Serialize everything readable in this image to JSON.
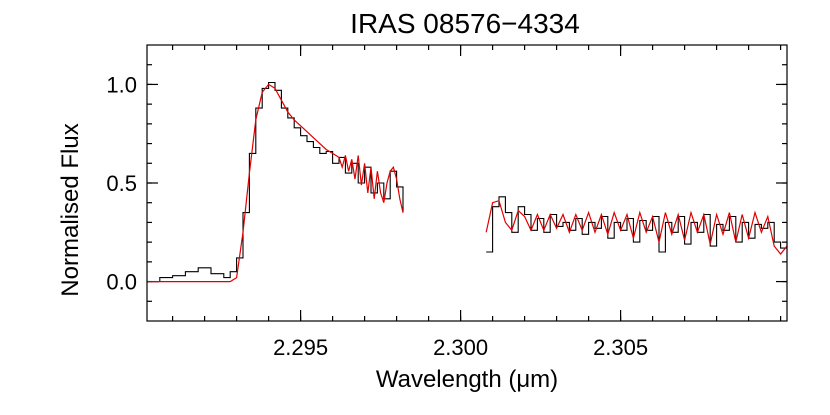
{
  "chart_data": {
    "type": "line",
    "title": "IRAS 08576−4334",
    "xlabel": "Wavelength (μm)",
    "ylabel": "Normalised Flux",
    "xlim": [
      2.2902,
      2.3102
    ],
    "ylim": [
      -0.2,
      1.2
    ],
    "x_ticks": [
      2.295,
      2.3,
      2.305
    ],
    "x_tick_labels": [
      "2.295",
      "2.300",
      "2.305"
    ],
    "x_minor_step": 0.001,
    "y_ticks": [
      0.0,
      0.5,
      1.0
    ],
    "y_tick_labels": [
      "0.0",
      "0.5",
      "1.0"
    ],
    "y_minor_step": 0.1,
    "grid": false,
    "colors": {
      "observed": "#000000",
      "model": "#e00000"
    },
    "series": [
      {
        "style": "histogram-step",
        "color": "#000000",
        "segments": [
          {
            "x": [
              2.2902,
              2.2906,
              2.291,
              2.2914,
              2.2918,
              2.2922,
              2.2926,
              2.2928,
              2.293,
              2.2932,
              2.2934,
              2.2936,
              2.2938,
              2.294,
              2.2942,
              2.2944,
              2.2946,
              2.2948,
              2.295,
              2.2952,
              2.2954,
              2.2956,
              2.2958,
              2.296,
              2.2962,
              2.2964,
              2.2966,
              2.2968,
              2.297,
              2.2972,
              2.2974,
              2.2976,
              2.2978,
              2.298,
              2.2982
            ],
            "y": [
              0.0,
              0.02,
              0.03,
              0.05,
              0.07,
              0.04,
              0.02,
              0.05,
              0.12,
              0.35,
              0.65,
              0.88,
              0.98,
              1.01,
              0.97,
              0.88,
              0.83,
              0.78,
              0.74,
              0.71,
              0.68,
              0.65,
              0.66,
              0.6,
              0.63,
              0.55,
              0.6,
              0.5,
              0.58,
              0.45,
              0.5,
              0.42,
              0.56,
              0.48,
              0.35
            ]
          },
          {
            "x": [
              2.3008,
              2.301,
              2.3012,
              2.3014,
              2.3016,
              2.3018,
              2.302,
              2.3022,
              2.3024,
              2.3026,
              2.3028,
              2.303,
              2.3032,
              2.3034,
              2.3036,
              2.3038,
              2.304,
              2.3042,
              2.3044,
              2.3046,
              2.3048,
              2.305,
              2.3052,
              2.3054,
              2.3056,
              2.3058,
              2.306,
              2.3062,
              2.3064,
              2.3066,
              2.3068,
              2.307,
              2.3072,
              2.3074,
              2.3076,
              2.3078,
              2.308,
              2.3082,
              2.3084,
              2.3086,
              2.3088,
              2.309,
              2.3092,
              2.3094,
              2.3096,
              2.3098,
              2.31,
              2.3102
            ],
            "y": [
              0.15,
              0.38,
              0.43,
              0.35,
              0.25,
              0.38,
              0.34,
              0.26,
              0.32,
              0.25,
              0.34,
              0.28,
              0.3,
              0.26,
              0.32,
              0.24,
              0.3,
              0.27,
              0.33,
              0.22,
              0.3,
              0.26,
              0.32,
              0.2,
              0.31,
              0.26,
              0.33,
              0.15,
              0.3,
              0.25,
              0.33,
              0.19,
              0.3,
              0.25,
              0.34,
              0.18,
              0.29,
              0.26,
              0.33,
              0.2,
              0.3,
              0.22,
              0.29,
              0.27,
              0.3,
              0.2,
              0.17,
              0.2
            ]
          }
        ]
      },
      {
        "style": "line",
        "color": "#e00000",
        "segments": [
          {
            "x": [
              2.2902,
              2.291,
              2.292,
              2.2928,
              2.293,
              2.2932,
              2.2934,
              2.2936,
              2.2938,
              2.294,
              2.2942,
              2.2944,
              2.2946,
              2.2948,
              2.295,
              2.2952,
              2.2954,
              2.2956,
              2.2958,
              2.296,
              2.2962,
              2.2963,
              2.2964,
              2.2965,
              2.2966,
              2.2967,
              2.2968,
              2.2969,
              2.297,
              2.2971,
              2.2972,
              2.2973,
              2.2974,
              2.2975,
              2.2976,
              2.2977,
              2.2978,
              2.2979,
              2.298,
              2.2981,
              2.2982
            ],
            "y": [
              0.0,
              0.0,
              0.0,
              0.0,
              0.02,
              0.25,
              0.55,
              0.82,
              0.96,
              1.0,
              0.98,
              0.92,
              0.86,
              0.82,
              0.79,
              0.76,
              0.73,
              0.7,
              0.67,
              0.65,
              0.63,
              0.58,
              0.64,
              0.56,
              0.62,
              0.52,
              0.64,
              0.49,
              0.6,
              0.45,
              0.58,
              0.42,
              0.56,
              0.45,
              0.4,
              0.5,
              0.56,
              0.58,
              0.52,
              0.42,
              0.35
            ]
          },
          {
            "x": [
              2.3008,
              2.301,
              2.3012,
              2.3014,
              2.3016,
              2.3018,
              2.302,
              2.3022,
              2.3024,
              2.3026,
              2.3028,
              2.303,
              2.3032,
              2.3034,
              2.3036,
              2.3038,
              2.304,
              2.3042,
              2.3044,
              2.3046,
              2.3048,
              2.305,
              2.3052,
              2.3054,
              2.3056,
              2.3058,
              2.306,
              2.3062,
              2.3064,
              2.3066,
              2.3068,
              2.307,
              2.3072,
              2.3074,
              2.3076,
              2.3078,
              2.308,
              2.3082,
              2.3084,
              2.3086,
              2.3088,
              2.309,
              2.3092,
              2.3094,
              2.3096,
              2.3098,
              2.31,
              2.3102
            ],
            "y": [
              0.25,
              0.4,
              0.41,
              0.3,
              0.26,
              0.36,
              0.33,
              0.26,
              0.34,
              0.26,
              0.34,
              0.27,
              0.34,
              0.25,
              0.34,
              0.26,
              0.35,
              0.25,
              0.34,
              0.24,
              0.35,
              0.26,
              0.34,
              0.22,
              0.35,
              0.25,
              0.33,
              0.2,
              0.35,
              0.24,
              0.34,
              0.21,
              0.35,
              0.25,
              0.34,
              0.19,
              0.34,
              0.24,
              0.35,
              0.2,
              0.34,
              0.22,
              0.35,
              0.25,
              0.33,
              0.18,
              0.14,
              0.18
            ]
          }
        ]
      }
    ]
  }
}
